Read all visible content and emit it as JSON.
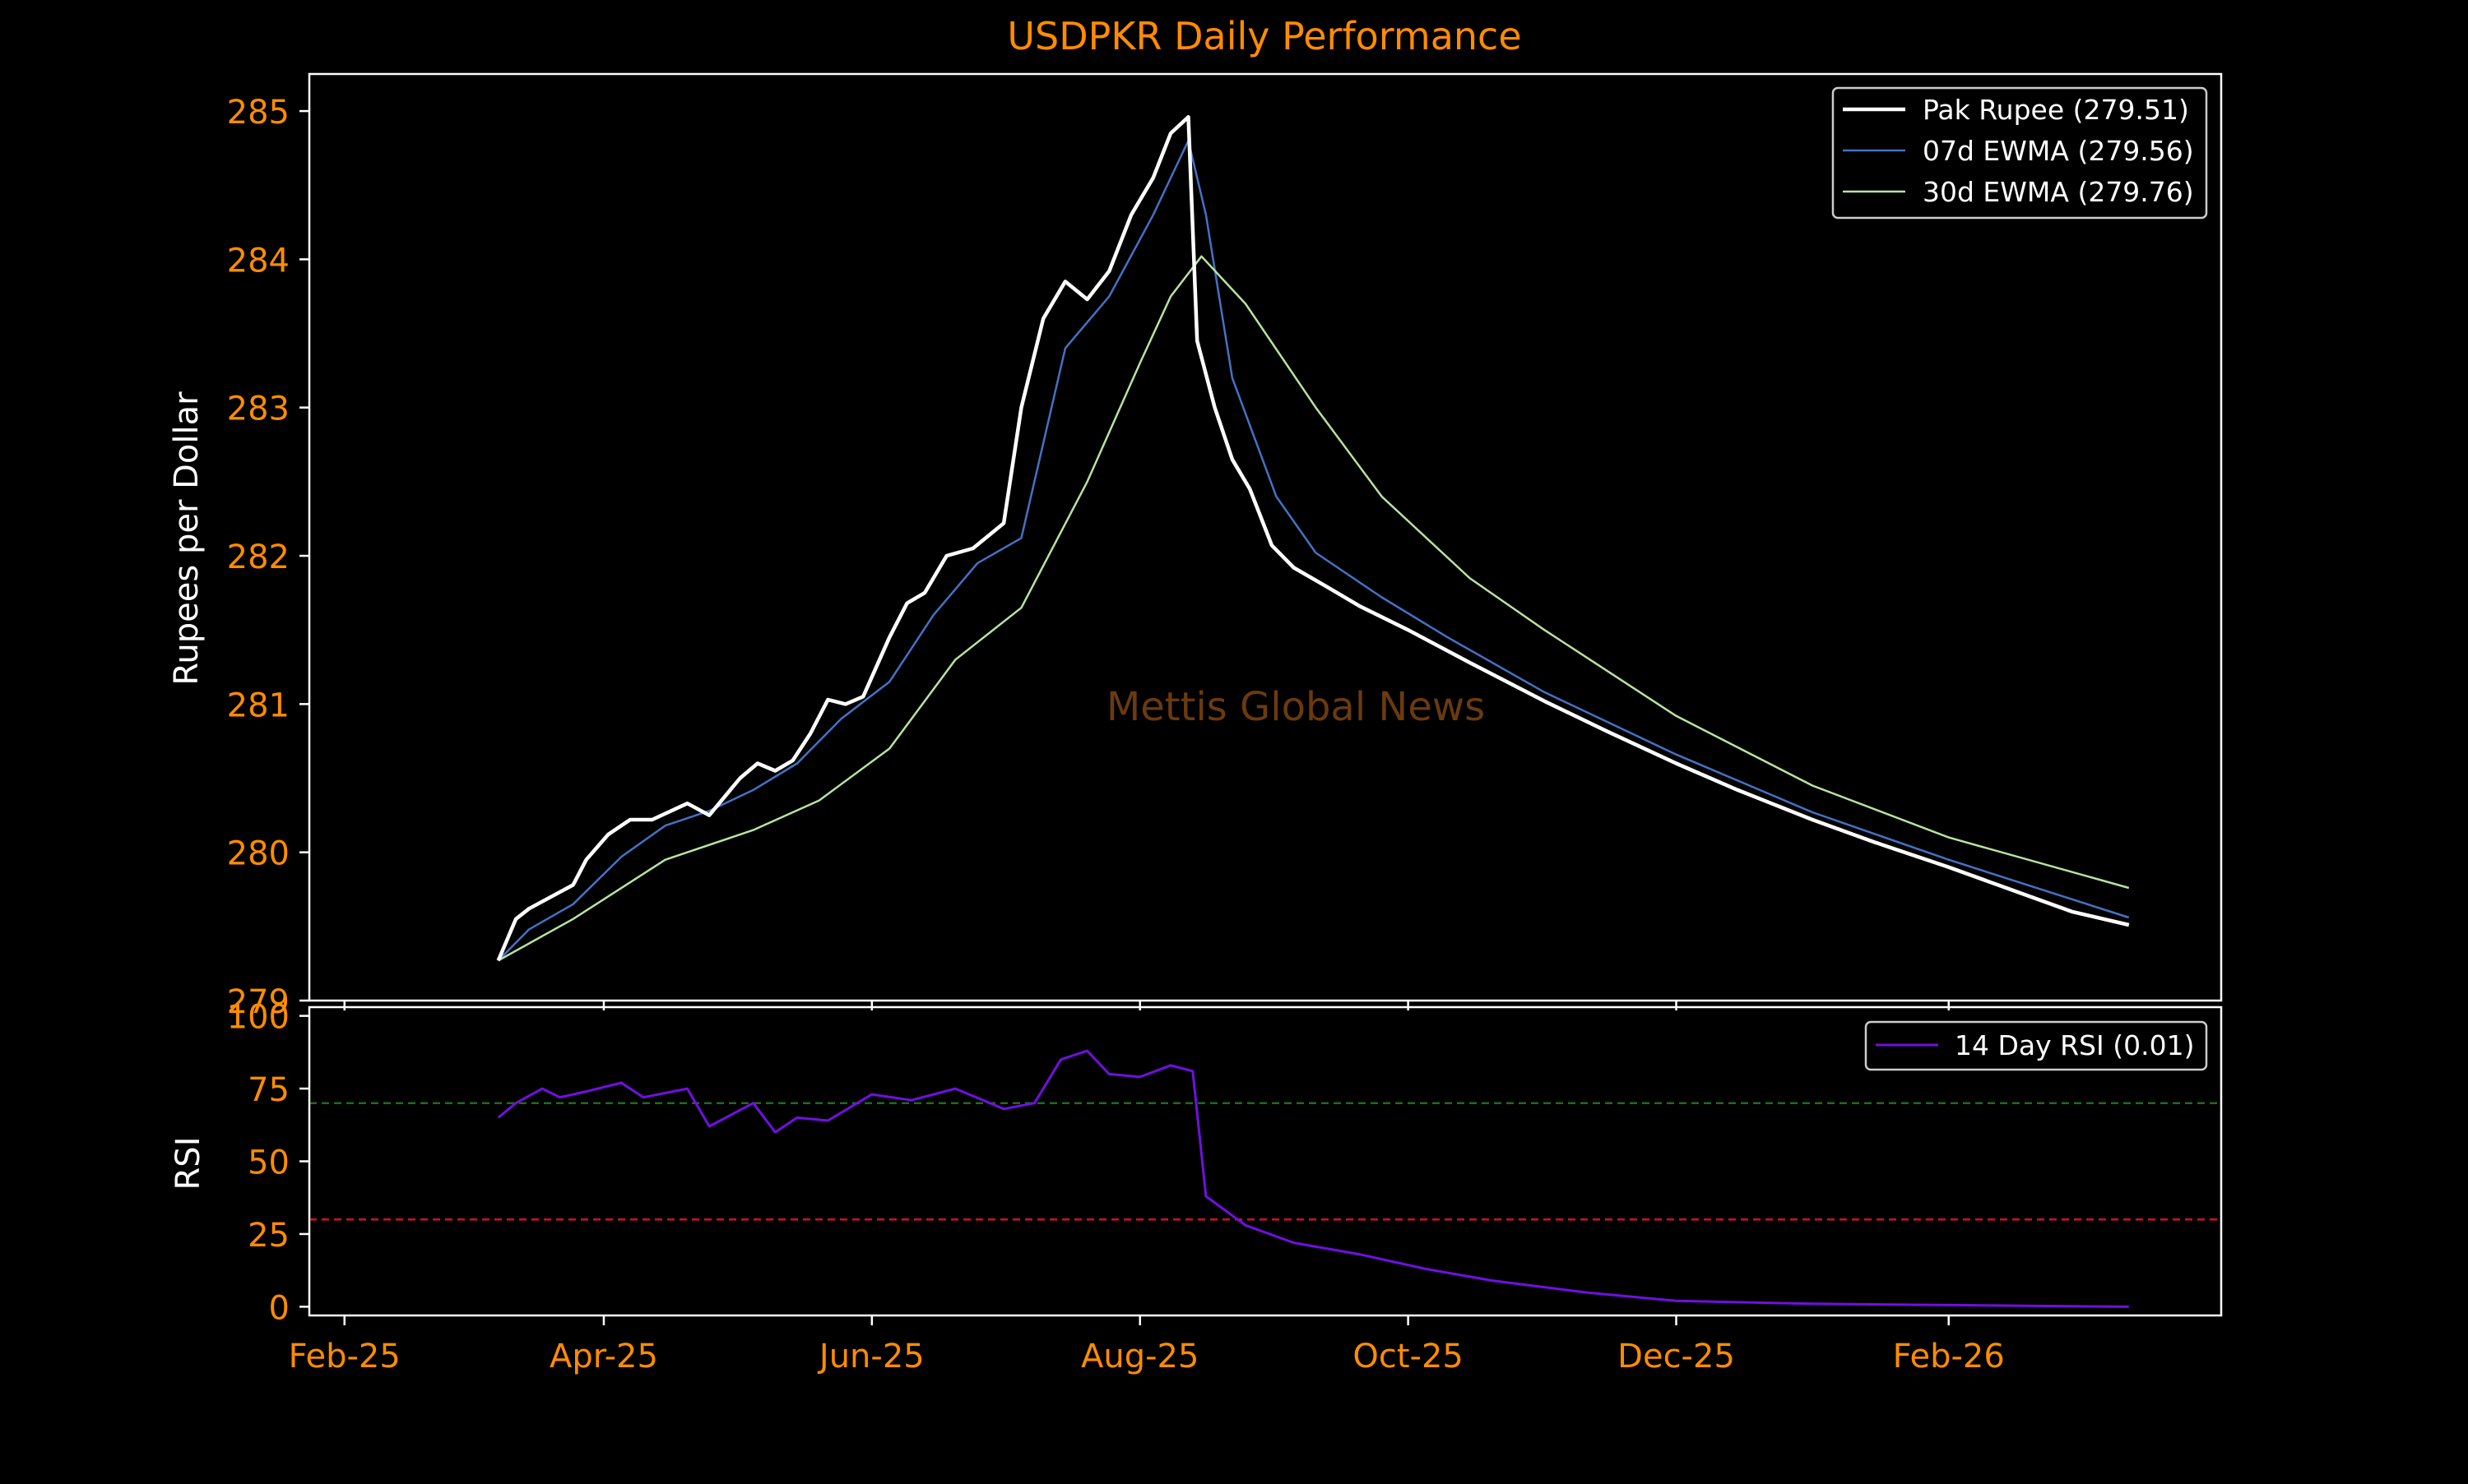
{
  "chart_data": [
    {
      "type": "line",
      "panel": "price",
      "title": "USDPKR Daily Performance",
      "ylabel": "Rupees per Dollar",
      "watermark": "Mettis Global News",
      "ylim": [
        279,
        285.25
      ],
      "yticks": [
        "279",
        "280",
        "281",
        "282",
        "283",
        "284",
        "285"
      ],
      "legend_position": "top-right",
      "series": [
        {
          "name": "Pak Rupee (279.51)",
          "color": "#ffffff",
          "points": [
            [
              "2025-03-08",
              279.27
            ],
            [
              "2025-03-12",
              279.55
            ],
            [
              "2025-03-15",
              279.62
            ],
            [
              "2025-03-20",
              279.7
            ],
            [
              "2025-03-25",
              279.78
            ],
            [
              "2025-03-28",
              279.95
            ],
            [
              "2025-04-02",
              280.12
            ],
            [
              "2025-04-07",
              280.22
            ],
            [
              "2025-04-12",
              280.22
            ],
            [
              "2025-04-20",
              280.33
            ],
            [
              "2025-04-25",
              280.25
            ],
            [
              "2025-05-02",
              280.5
            ],
            [
              "2025-05-06",
              280.6
            ],
            [
              "2025-05-10",
              280.55
            ],
            [
              "2025-05-14",
              280.62
            ],
            [
              "2025-05-18",
              280.8
            ],
            [
              "2025-05-22",
              281.03
            ],
            [
              "2025-05-26",
              281.0
            ],
            [
              "2025-05-30",
              281.05
            ],
            [
              "2025-06-05",
              281.45
            ],
            [
              "2025-06-09",
              281.68
            ],
            [
              "2025-06-13",
              281.75
            ],
            [
              "2025-06-18",
              282.0
            ],
            [
              "2025-06-24",
              282.05
            ],
            [
              "2025-07-01",
              282.22
            ],
            [
              "2025-07-05",
              283.0
            ],
            [
              "2025-07-10",
              283.6
            ],
            [
              "2025-07-15",
              283.85
            ],
            [
              "2025-07-20",
              283.73
            ],
            [
              "2025-07-25",
              283.92
            ],
            [
              "2025-07-30",
              284.3
            ],
            [
              "2025-08-04",
              284.55
            ],
            [
              "2025-08-08",
              284.85
            ],
            [
              "2025-08-12",
              284.96
            ],
            [
              "2025-08-14",
              283.45
            ],
            [
              "2025-08-18",
              283.0
            ],
            [
              "2025-08-22",
              282.65
            ],
            [
              "2025-08-26",
              282.45
            ],
            [
              "2025-08-31",
              282.07
            ],
            [
              "2025-09-05",
              281.92
            ],
            [
              "2025-09-12",
              281.8
            ],
            [
              "2025-09-20",
              281.66
            ],
            [
              "2025-10-01",
              281.5
            ],
            [
              "2025-10-15",
              281.28
            ],
            [
              "2025-11-01",
              281.02
            ],
            [
              "2025-11-15",
              280.82
            ],
            [
              "2025-12-01",
              280.6
            ],
            [
              "2025-12-15",
              280.42
            ],
            [
              "2026-01-01",
              280.22
            ],
            [
              "2026-01-15",
              280.07
            ],
            [
              "2026-02-01",
              279.9
            ],
            [
              "2026-02-15",
              279.75
            ],
            [
              "2026-03-01",
              279.6
            ],
            [
              "2026-03-14",
              279.51
            ]
          ]
        },
        {
          "name": "07d EWMA (279.56)",
          "color": "#4472c4",
          "points": [
            [
              "2025-03-08",
              279.27
            ],
            [
              "2025-03-15",
              279.48
            ],
            [
              "2025-03-25",
              279.65
            ],
            [
              "2025-04-05",
              279.97
            ],
            [
              "2025-04-15",
              280.18
            ],
            [
              "2025-04-25",
              280.28
            ],
            [
              "2025-05-05",
              280.42
            ],
            [
              "2025-05-15",
              280.6
            ],
            [
              "2025-05-25",
              280.9
            ],
            [
              "2025-06-05",
              281.15
            ],
            [
              "2025-06-15",
              281.6
            ],
            [
              "2025-06-25",
              281.95
            ],
            [
              "2025-07-05",
              282.12
            ],
            [
              "2025-07-15",
              283.4
            ],
            [
              "2025-07-25",
              283.75
            ],
            [
              "2025-08-04",
              284.3
            ],
            [
              "2025-08-12",
              284.8
            ],
            [
              "2025-08-16",
              284.3
            ],
            [
              "2025-08-22",
              283.2
            ],
            [
              "2025-09-01",
              282.4
            ],
            [
              "2025-09-10",
              282.02
            ],
            [
              "2025-09-25",
              281.72
            ],
            [
              "2025-10-10",
              281.45
            ],
            [
              "2025-11-01",
              281.08
            ],
            [
              "2025-12-01",
              280.66
            ],
            [
              "2026-01-01",
              280.27
            ],
            [
              "2026-02-01",
              279.95
            ],
            [
              "2026-03-14",
              279.56
            ]
          ]
        },
        {
          "name": "30d EWMA (279.76)",
          "color": "#b7e4a0",
          "points": [
            [
              "2025-03-08",
              279.27
            ],
            [
              "2025-03-25",
              279.55
            ],
            [
              "2025-04-15",
              279.95
            ],
            [
              "2025-05-05",
              280.15
            ],
            [
              "2025-05-20",
              280.35
            ],
            [
              "2025-06-05",
              280.7
            ],
            [
              "2025-06-20",
              281.3
            ],
            [
              "2025-07-05",
              281.65
            ],
            [
              "2025-07-20",
              282.5
            ],
            [
              "2025-08-01",
              283.3
            ],
            [
              "2025-08-08",
              283.75
            ],
            [
              "2025-08-15",
              284.02
            ],
            [
              "2025-08-25",
              283.7
            ],
            [
              "2025-09-10",
              283.0
            ],
            [
              "2025-09-25",
              282.4
            ],
            [
              "2025-10-15",
              281.85
            ],
            [
              "2025-11-01",
              281.5
            ],
            [
              "2025-12-01",
              280.92
            ],
            [
              "2026-01-01",
              280.45
            ],
            [
              "2026-02-01",
              280.1
            ],
            [
              "2026-03-14",
              279.76
            ]
          ]
        }
      ]
    },
    {
      "type": "line",
      "panel": "rsi",
      "ylabel": "RSI",
      "ylim": [
        -3,
        103
      ],
      "yticks": [
        "0",
        "25",
        "50",
        "75",
        "100"
      ],
      "reference_lines": [
        {
          "value": 70,
          "color": "#1e6b1e",
          "style": "dashed"
        },
        {
          "value": 30,
          "color": "#d0102a",
          "style": "dashed"
        }
      ],
      "legend_position": "top-right",
      "xticks": [
        {
          "date": "2025-02-01",
          "label": "Feb-25"
        },
        {
          "date": "2025-04-01",
          "label": "Apr-25"
        },
        {
          "date": "2025-06-01",
          "label": "Jun-25"
        },
        {
          "date": "2025-08-01",
          "label": "Aug-25"
        },
        {
          "date": "2025-10-01",
          "label": "Oct-25"
        },
        {
          "date": "2025-12-01",
          "label": "Dec-25"
        },
        {
          "date": "2026-02-01",
          "label": "Feb-26"
        }
      ],
      "xlim": [
        "2025-01-24",
        "2026-04-04"
      ],
      "series": [
        {
          "name": "14 Day RSI (0.01)",
          "color": "#7010e0",
          "points": [
            [
              "2025-03-08",
              65
            ],
            [
              "2025-03-12",
              70
            ],
            [
              "2025-03-18",
              75
            ],
            [
              "2025-03-22",
              72
            ],
            [
              "2025-03-28",
              74
            ],
            [
              "2025-04-05",
              77
            ],
            [
              "2025-04-10",
              72
            ],
            [
              "2025-04-20",
              75
            ],
            [
              "2025-04-25",
              62
            ],
            [
              "2025-05-05",
              70
            ],
            [
              "2025-05-10",
              60
            ],
            [
              "2025-05-15",
              65
            ],
            [
              "2025-05-22",
              64
            ],
            [
              "2025-06-01",
              73
            ],
            [
              "2025-06-10",
              71
            ],
            [
              "2025-06-20",
              75
            ],
            [
              "2025-07-01",
              68
            ],
            [
              "2025-07-08",
              70
            ],
            [
              "2025-07-14",
              85
            ],
            [
              "2025-07-20",
              88
            ],
            [
              "2025-07-25",
              80
            ],
            [
              "2025-08-01",
              79
            ],
            [
              "2025-08-08",
              83
            ],
            [
              "2025-08-13",
              81
            ],
            [
              "2025-08-16",
              38
            ],
            [
              "2025-08-25",
              28
            ],
            [
              "2025-09-05",
              22
            ],
            [
              "2025-09-20",
              18
            ],
            [
              "2025-10-05",
              13
            ],
            [
              "2025-10-20",
              9
            ],
            [
              "2025-11-10",
              5
            ],
            [
              "2025-12-01",
              2
            ],
            [
              "2026-01-01",
              1
            ],
            [
              "2026-03-14",
              0.01
            ]
          ]
        }
      ]
    }
  ]
}
